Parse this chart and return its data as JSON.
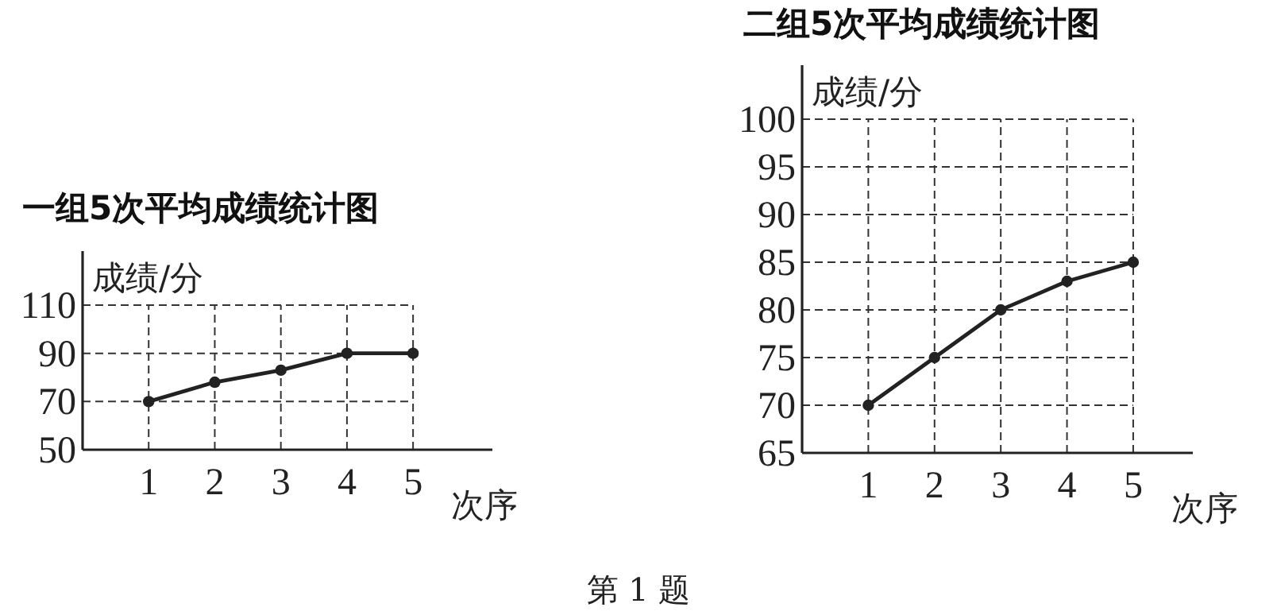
{
  "chart_data": [
    {
      "type": "line",
      "title": "一组5次平均成绩统计图",
      "xlabel": "次序",
      "ylabel": "成绩/分",
      "x": [
        1,
        2,
        3,
        4,
        5
      ],
      "xlim": [
        0,
        6.2
      ],
      "xticks": [
        1,
        2,
        3,
        4,
        5
      ],
      "ylim": [
        50,
        110
      ],
      "yticks": [
        50,
        70,
        90,
        110
      ],
      "grid": true,
      "marker": "circle",
      "line_style": "solid",
      "series": [
        {
          "color": "#222222",
          "values": [
            70,
            78,
            83,
            90,
            90
          ]
        }
      ],
      "annotations": [
        "第 1 题"
      ]
    },
    {
      "type": "line",
      "title": "二组5次平均成绩统计图",
      "xlabel": "次序",
      "ylabel": "成绩/分",
      "x": [
        1,
        2,
        3,
        4,
        5
      ],
      "xlim": [
        0,
        5.9
      ],
      "xticks": [
        1,
        2,
        3,
        4,
        5
      ],
      "ylim": [
        65,
        100
      ],
      "yticks": [
        65,
        70,
        75,
        80,
        85,
        90,
        95,
        100
      ],
      "grid": true,
      "marker": "circle",
      "line_style": "solid",
      "series": [
        {
          "color": "#222222",
          "values": [
            70,
            75,
            80,
            83,
            85
          ]
        }
      ]
    }
  ]
}
